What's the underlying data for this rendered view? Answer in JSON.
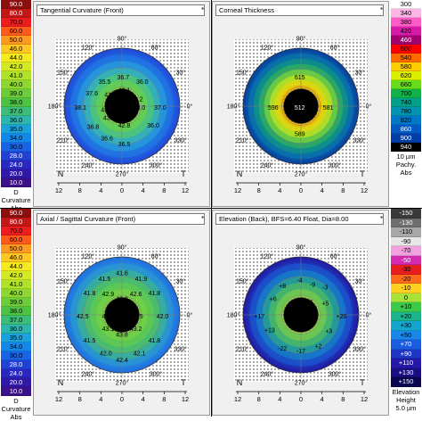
{
  "scales": {
    "curvature_top": {
      "steps": [
        {
          "label": "90.0",
          "color": "#8c0f0f"
        },
        {
          "label": "80.0",
          "color": "#c41717"
        },
        {
          "label": "70.0",
          "color": "#ee1c1c"
        },
        {
          "label": "60.0",
          "color": "#ff5a1a"
        },
        {
          "label": "50.0",
          "color": "#ff9a20"
        },
        {
          "label": "46.0",
          "color": "#ffc820"
        },
        {
          "label": "44.0",
          "color": "#f5ea1e"
        },
        {
          "label": "42.0",
          "color": "#d2ea24"
        },
        {
          "label": "41.0",
          "color": "#b0e22a"
        },
        {
          "label": "40.0",
          "color": "#8ed632"
        },
        {
          "label": "39.0",
          "color": "#6ccc3a"
        },
        {
          "label": "38.0",
          "color": "#4ec244"
        },
        {
          "label": "37.0",
          "color": "#3cbe7a"
        },
        {
          "label": "36.0",
          "color": "#2cb6ae"
        },
        {
          "label": "35.0",
          "color": "#1aa2dc"
        },
        {
          "label": "34.0",
          "color": "#1488ea"
        },
        {
          "label": "30.0",
          "color": "#1a62e6"
        },
        {
          "label": "28.0",
          "color": "#2040d6"
        },
        {
          "label": "24.0",
          "color": "#2a28c0"
        },
        {
          "label": "20.0",
          "color": "#3218a8"
        },
        {
          "label": "10.0",
          "color": "#3c1088"
        }
      ],
      "caption": [
        "D",
        "Curvature",
        "Abs"
      ]
    },
    "pachy": {
      "steps": [
        {
          "label": "300",
          "color": "#ffffff"
        },
        {
          "label": "340",
          "color": "#ffb6e6"
        },
        {
          "label": "380",
          "color": "#ff5cc8"
        },
        {
          "label": "420",
          "color": "#d81aa8"
        },
        {
          "label": "460",
          "color": "#a4006e"
        },
        {
          "label": "500",
          "color": "#ff0000"
        },
        {
          "label": "540",
          "color": "#ff6a00"
        },
        {
          "label": "580",
          "color": "#ffcc00"
        },
        {
          "label": "620",
          "color": "#d8f000"
        },
        {
          "label": "660",
          "color": "#66dc1a"
        },
        {
          "label": "700",
          "color": "#12b248"
        },
        {
          "label": "740",
          "color": "#00a08a"
        },
        {
          "label": "780",
          "color": "#0094b2"
        },
        {
          "label": "820",
          "color": "#0078ca"
        },
        {
          "label": "860",
          "color": "#005ac4"
        },
        {
          "label": "900",
          "color": "#003ea8"
        },
        {
          "label": "940",
          "color": "#000000"
        }
      ],
      "caption": [
        "10 µm",
        "Pachy.",
        "Abs"
      ]
    },
    "curvature_bottom": {
      "steps": [
        {
          "label": "90.0",
          "color": "#8c0f0f"
        },
        {
          "label": "80.0",
          "color": "#c41717"
        },
        {
          "label": "70.0",
          "color": "#ee1c1c"
        },
        {
          "label": "60.0",
          "color": "#ff5a1a"
        },
        {
          "label": "50.0",
          "color": "#ff9a20"
        },
        {
          "label": "46.0",
          "color": "#ffc820"
        },
        {
          "label": "44.0",
          "color": "#f5ea1e"
        },
        {
          "label": "42.0",
          "color": "#d2ea24"
        },
        {
          "label": "41.0",
          "color": "#b0e22a"
        },
        {
          "label": "40.0",
          "color": "#8ed632"
        },
        {
          "label": "39.0",
          "color": "#6ccc3a"
        },
        {
          "label": "38.0",
          "color": "#4ec244"
        },
        {
          "label": "37.0",
          "color": "#3cbe7a"
        },
        {
          "label": "36.0",
          "color": "#2cb6ae"
        },
        {
          "label": "35.0",
          "color": "#1aa2dc"
        },
        {
          "label": "34.0",
          "color": "#1488ea"
        },
        {
          "label": "30.0",
          "color": "#1a62e6"
        },
        {
          "label": "28.0",
          "color": "#2040d6"
        },
        {
          "label": "24.0",
          "color": "#2a28c0"
        },
        {
          "label": "20.0",
          "color": "#3218a8"
        },
        {
          "label": "10.0",
          "color": "#3c1088"
        }
      ],
      "caption": [
        "D",
        "Curvature",
        "Abs"
      ]
    },
    "elevation": {
      "steps": [
        {
          "label": "-150",
          "color": "#3a3a3a"
        },
        {
          "label": "-130",
          "color": "#6e6e6e"
        },
        {
          "label": "-110",
          "color": "#a8a8a8"
        },
        {
          "label": "-90",
          "color": "#e6e6e6"
        },
        {
          "label": "-70",
          "color": "#f2a0e0"
        },
        {
          "label": "-50",
          "color": "#d42ab0"
        },
        {
          "label": "-30",
          "color": "#e81e1e"
        },
        {
          "label": "-20",
          "color": "#ff6a1a"
        },
        {
          "label": "-10",
          "color": "#ffd020"
        },
        {
          "label": "0",
          "color": "#a6e23a"
        },
        {
          "label": "+10",
          "color": "#3cc84a"
        },
        {
          "label": "+20",
          "color": "#1cb48c"
        },
        {
          "label": "+30",
          "color": "#14a6cc"
        },
        {
          "label": "+50",
          "color": "#1a86ea"
        },
        {
          "label": "+70",
          "color": "#1a5ce0"
        },
        {
          "label": "+90",
          "color": "#1e36c6"
        },
        {
          "label": "+110",
          "color": "#2418a6"
        },
        {
          "label": "+130",
          "color": "#1a0e80"
        },
        {
          "label": "+150",
          "color": "#0a0650"
        }
      ],
      "caption": [
        "Elevation",
        "Height",
        "5.0 µm"
      ]
    }
  },
  "maps": {
    "tangential": {
      "title": "Tangential Curvature (Front)",
      "angles": {
        "top": "90°",
        "bottom": "270°",
        "left": "180°",
        "right": "0°",
        "a60": "60°",
        "a120": "120°",
        "a150": "150°",
        "a210": "210°",
        "a240": "240°",
        "a300": "300°",
        "a330": "330°",
        "a30": "30°"
      },
      "nasal": "N",
      "temporal": "T",
      "ticks": [
        "12",
        "8",
        "4",
        "0",
        "4",
        "8",
        "12"
      ],
      "values": [
        {
          "text": "36.7",
          "dx": 0.02,
          "dy": -0.5
        },
        {
          "text": "35.5",
          "dx": -0.3,
          "dy": -0.42
        },
        {
          "text": "36.0",
          "dx": 0.35,
          "dy": -0.42
        },
        {
          "text": "37.6",
          "dx": -0.52,
          "dy": -0.22
        },
        {
          "text": "41.9",
          "dx": -0.2,
          "dy": -0.2
        },
        {
          "text": "42.1",
          "dx": 0.04,
          "dy": -0.28
        },
        {
          "text": "42.2",
          "dx": 0.26,
          "dy": -0.12
        },
        {
          "text": "38.1",
          "dx": -0.72,
          "dy": 0.02
        },
        {
          "text": "43.1",
          "dx": -0.26,
          "dy": 0.06
        },
        {
          "text": "44.1",
          "dx": 0.02,
          "dy": 0.02
        },
        {
          "text": "43.0",
          "dx": 0.3,
          "dy": 0.02
        },
        {
          "text": "37.0",
          "dx": 0.66,
          "dy": 0.02
        },
        {
          "text": "43.3",
          "dx": -0.22,
          "dy": 0.2
        },
        {
          "text": "42.8",
          "dx": 0.04,
          "dy": 0.33
        },
        {
          "text": "36.8",
          "dx": -0.5,
          "dy": 0.35
        },
        {
          "text": "36.0",
          "dx": 0.54,
          "dy": 0.33
        },
        {
          "text": "36.6",
          "dx": -0.26,
          "dy": 0.55
        },
        {
          "text": "36.5",
          "dx": 0.04,
          "dy": 0.65
        }
      ]
    },
    "thickness": {
      "title": "Corneal Thickness",
      "angles": {
        "top": "90°",
        "bottom": "270°",
        "left": "180°",
        "right": "0°",
        "a60": "60°",
        "a120": "120°",
        "a150": "150°",
        "a210": "210°",
        "a240": "240°",
        "a300": "300°",
        "a330": "330°",
        "a30": "30°"
      },
      "nasal": "N",
      "temporal": "T",
      "ticks": [
        "12",
        "8",
        "4",
        "0",
        "4",
        "8",
        "12"
      ],
      "values": [
        {
          "text": "615",
          "dx": -0.02,
          "dy": -0.5
        },
        {
          "text": "596",
          "dx": -0.48,
          "dy": 0.02
        },
        {
          "text": "512",
          "dx": -0.02,
          "dy": 0.02
        },
        {
          "text": "581",
          "dx": 0.47,
          "dy": 0.02
        },
        {
          "text": "589",
          "dx": -0.02,
          "dy": 0.48
        }
      ]
    },
    "axial": {
      "title": "Axial / Sagittal Curvature (Front)",
      "angles": {
        "top": "90°",
        "bottom": "270°",
        "left": "180°",
        "right": "0°",
        "a60": "60°",
        "a120": "120°",
        "a150": "150°",
        "a210": "210°",
        "a240": "240°",
        "a300": "300°",
        "a330": "330°",
        "a30": "30°"
      },
      "nasal": "N",
      "temporal": "T",
      "ticks": [
        "12",
        "8",
        "4",
        "0",
        "4",
        "8",
        "12"
      ],
      "values": [
        {
          "text": "41.6",
          "dx": 0.0,
          "dy": -0.72
        },
        {
          "text": "41.5",
          "dx": -0.3,
          "dy": -0.62
        },
        {
          "text": "41.9",
          "dx": 0.33,
          "dy": -0.62
        },
        {
          "text": "41.8",
          "dx": -0.56,
          "dy": -0.38
        },
        {
          "text": "42.9",
          "dx": -0.24,
          "dy": -0.36
        },
        {
          "text": "43.0",
          "dx": 0.0,
          "dy": -0.28
        },
        {
          "text": "42.6",
          "dx": 0.24,
          "dy": -0.36
        },
        {
          "text": "41.8",
          "dx": 0.56,
          "dy": -0.38
        },
        {
          "text": "42.5",
          "dx": -0.68,
          "dy": 0.02
        },
        {
          "text": "43.3",
          "dx": -0.24,
          "dy": 0.02
        },
        {
          "text": "44.1",
          "dx": 0.0,
          "dy": 0.02
        },
        {
          "text": "43.5",
          "dx": 0.26,
          "dy": 0.02
        },
        {
          "text": "42.0",
          "dx": 0.7,
          "dy": 0.02
        },
        {
          "text": "43.1",
          "dx": -0.24,
          "dy": 0.24
        },
        {
          "text": "43.8",
          "dx": 0.0,
          "dy": 0.34
        },
        {
          "text": "43.2",
          "dx": 0.24,
          "dy": 0.24
        },
        {
          "text": "41.5",
          "dx": -0.56,
          "dy": 0.44
        },
        {
          "text": "41.8",
          "dx": 0.56,
          "dy": 0.44
        },
        {
          "text": "42.0",
          "dx": -0.28,
          "dy": 0.66
        },
        {
          "text": "42.1",
          "dx": 0.3,
          "dy": 0.66
        },
        {
          "text": "42.4",
          "dx": 0.0,
          "dy": 0.78
        }
      ]
    },
    "elevation": {
      "title": "Elevation (Back), BFS=6.40 Float, Dia=8.00",
      "angles": {
        "top": "90°",
        "bottom": "270°",
        "left": "180°",
        "right": "0°",
        "a60": "60°",
        "a120": "120°",
        "a150": "150°",
        "a210": "210°",
        "a240": "240°",
        "a300": "300°",
        "a330": "330°",
        "a30": "30°"
      },
      "nasal": "N",
      "temporal": "T",
      "ticks": [
        "12",
        "8",
        "4",
        "0",
        "4",
        "8",
        "12"
      ],
      "values": [
        {
          "text": "-4",
          "dx": -0.02,
          "dy": -0.6
        },
        {
          "text": "-9",
          "dx": 0.2,
          "dy": -0.52
        },
        {
          "text": "-3",
          "dx": 0.42,
          "dy": -0.48
        },
        {
          "text": "+8",
          "dx": -0.32,
          "dy": -0.5
        },
        {
          "text": "+6",
          "dx": -0.48,
          "dy": -0.28
        },
        {
          "text": "+1",
          "dx": -0.14,
          "dy": -0.2
        },
        {
          "text": "-6",
          "dx": 0.16,
          "dy": -0.22
        },
        {
          "text": "+5",
          "dx": 0.42,
          "dy": -0.2
        },
        {
          "text": "+17",
          "dx": -0.72,
          "dy": 0.02
        },
        {
          "text": "-1",
          "dx": 0.0,
          "dy": 0.02
        },
        {
          "text": "+20",
          "dx": 0.7,
          "dy": 0.02
        },
        {
          "text": "+13",
          "dx": -0.54,
          "dy": 0.26
        },
        {
          "text": "-2",
          "dx": -0.16,
          "dy": 0.22
        },
        {
          "text": "+1",
          "dx": 0.16,
          "dy": 0.18
        },
        {
          "text": "+3",
          "dx": 0.48,
          "dy": 0.28
        },
        {
          "text": "-22",
          "dx": -0.32,
          "dy": 0.58
        },
        {
          "text": "-17",
          "dx": 0.0,
          "dy": 0.62
        },
        {
          "text": "+2",
          "dx": 0.3,
          "dy": 0.54
        }
      ]
    }
  }
}
